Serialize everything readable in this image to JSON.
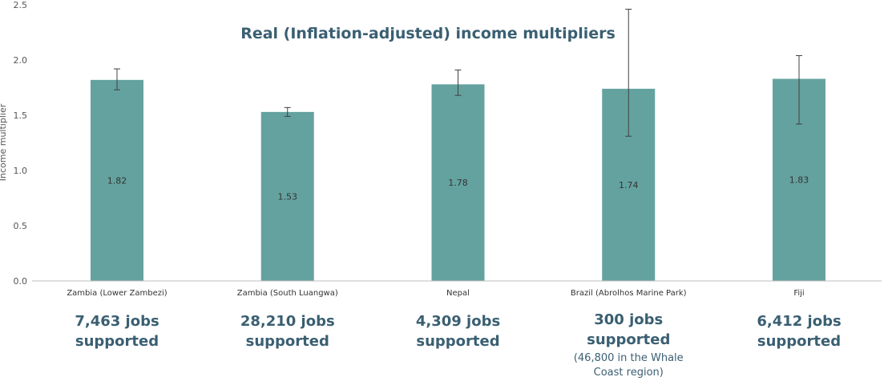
{
  "colors": {
    "bar": "#64a29f",
    "title": "#3a5f72",
    "jobs": "#3a5f72",
    "axis": "#bfbfbf",
    "error_bar": "#404040"
  },
  "chart_data": {
    "type": "bar",
    "title": "Real (Inflation-adjusted) income multipliers",
    "xlabel": "",
    "ylabel": "Income multiplier",
    "ylim": [
      0,
      2.5
    ],
    "yticks": [
      "0.0",
      "0.5",
      "1.0",
      "1.5",
      "2.0",
      "2.5"
    ],
    "grid": false,
    "categories": [
      "Zambia (Lower Zambezi)",
      "Zambia (South Luangwa)",
      "Nepal",
      "Brazil (Abrolhos Marine Park)",
      "Fiji"
    ],
    "values": [
      1.82,
      1.53,
      1.78,
      1.74,
      1.83
    ],
    "value_labels": [
      "1.82",
      "1.53",
      "1.78",
      "1.74",
      "1.83"
    ],
    "error_low": [
      1.73,
      1.49,
      1.68,
      1.31,
      1.42
    ],
    "error_high": [
      1.92,
      1.57,
      1.91,
      2.46,
      2.04
    ]
  },
  "jobs": [
    {
      "line1": "7,463 jobs",
      "line2": "supported",
      "note1": "",
      "note2": ""
    },
    {
      "line1": "28,210 jobs",
      "line2": "supported",
      "note1": "",
      "note2": ""
    },
    {
      "line1": "4,309 jobs",
      "line2": "supported",
      "note1": "",
      "note2": ""
    },
    {
      "line1": "300 jobs",
      "line2": "supported",
      "note1": "(46,800 in the Whale",
      "note2": "Coast region)"
    },
    {
      "line1": "6,412 jobs",
      "line2": "supported",
      "note1": "",
      "note2": ""
    }
  ]
}
